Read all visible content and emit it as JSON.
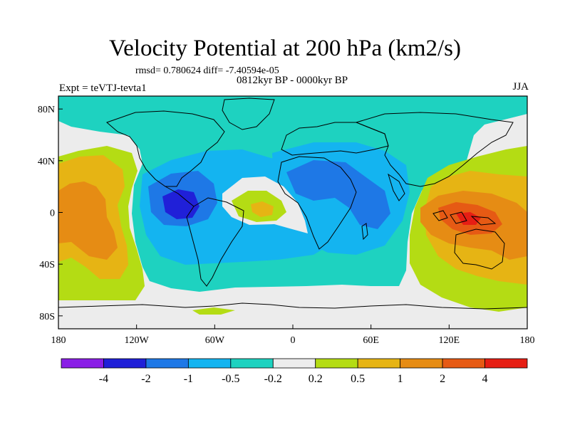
{
  "header": {
    "title": "Velocity Potential at 200 hPa (km2/s)",
    "stats": "rmsd= 0.780624 diff= -7.40594e-05",
    "subtitle": "0812kyr BP - 0000kyr BP",
    "experiment": "Expt = teVTJ-tevta1",
    "season": "JJA"
  },
  "axes": {
    "x_ticks": [
      {
        "lon": -180,
        "label": "180"
      },
      {
        "lon": -120,
        "label": "120W"
      },
      {
        "lon": -60,
        "label": "60W"
      },
      {
        "lon": 0,
        "label": "0"
      },
      {
        "lon": 60,
        "label": "60E"
      },
      {
        "lon": 120,
        "label": "120E"
      },
      {
        "lon": 180,
        "label": "180"
      }
    ],
    "y_ticks": [
      {
        "lat": 80,
        "label": "80N"
      },
      {
        "lat": 40,
        "label": "40N"
      },
      {
        "lat": 0,
        "label": "0"
      },
      {
        "lat": -40,
        "label": "40S"
      },
      {
        "lat": -80,
        "label": "80S"
      }
    ]
  },
  "colorbar": {
    "colors": [
      "#8a1ee6",
      "#2020d8",
      "#1e78e6",
      "#14b4f0",
      "#1ed2c0",
      "#ececec",
      "#b4dc14",
      "#e6b414",
      "#e68c14",
      "#e65a14",
      "#e61e14"
    ],
    "labels": [
      "-4",
      "-2",
      "-1",
      "-0.5",
      "-0.2",
      "0.2",
      "0.5",
      "1",
      "2",
      "4"
    ]
  }
}
